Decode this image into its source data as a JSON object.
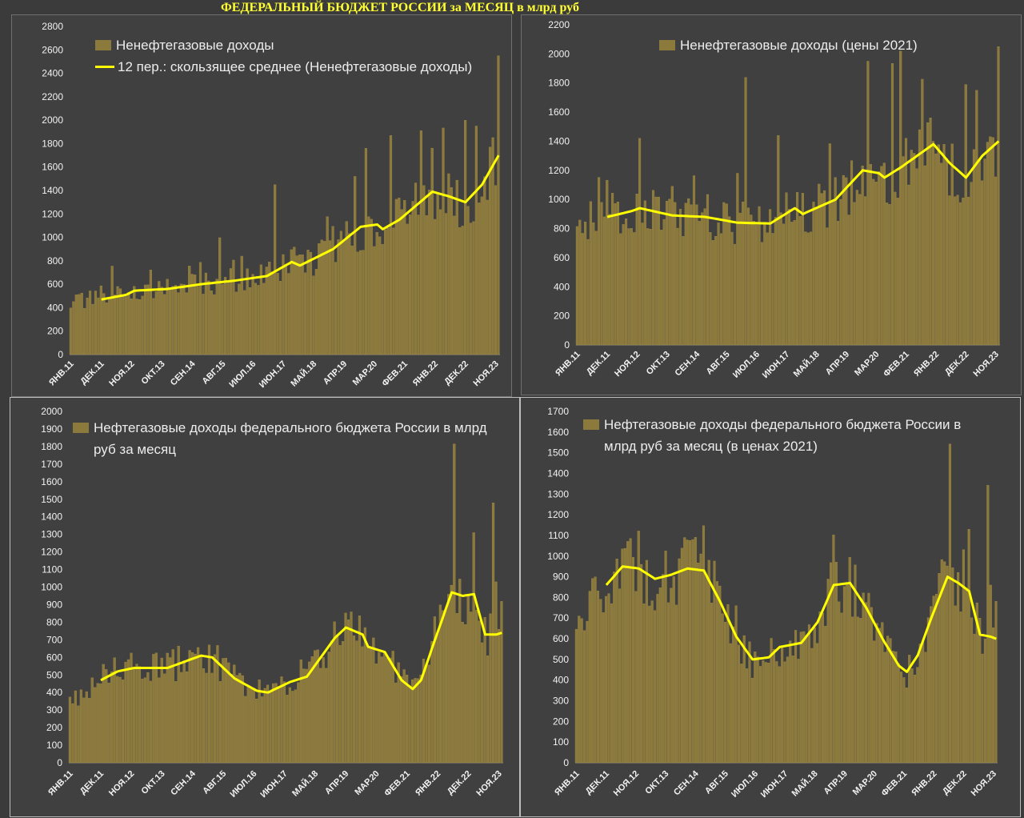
{
  "title": "ФЕДЕРАЛЬНЫЙ БЮДЖЕТ РОССИИ за МЕСЯЦ в млрд руб",
  "colors": {
    "bar": "#8c7a3c",
    "bar_edge": "#a89048",
    "line": "#ffff00",
    "background": "#404040",
    "title": "#ffff33"
  },
  "chart_data": [
    {
      "id": "nonoil-nominal",
      "type": "bar",
      "legend": [
        "Ненефтегазовые доходы",
        "12 пер.: скользящее среднее (Ненефтегазовые доходы)"
      ],
      "ylim": [
        0,
        2800
      ],
      "yticks": [
        "0",
        "200",
        "400",
        "600",
        "800",
        "1000",
        "1200",
        "1400",
        "1600",
        "1800",
        "2000",
        "2200",
        "2400",
        "2600",
        "2800"
      ],
      "xticks": [
        "ЯНВ.11",
        "ДЕК.11",
        "НОЯ.12",
        "ОКТ.13",
        "СЕН.14",
        "АВГ.15",
        "ИЮЛ.16",
        "ИЮН.17",
        "МАЙ.18",
        "АПР.19",
        "МАР.20",
        "ФЕВ.21",
        "ЯНВ.22",
        "ДЕК.22",
        "НОЯ.23"
      ],
      "x_start": "2011-01",
      "x_end": "2023-12",
      "trend_anchors": [
        [
          0,
          450
        ],
        [
          11,
          470
        ],
        [
          23,
          545
        ],
        [
          35,
          560
        ],
        [
          47,
          600
        ],
        [
          59,
          630
        ],
        [
          71,
          670
        ],
        [
          80,
          790
        ],
        [
          83,
          760
        ],
        [
          95,
          900
        ],
        [
          107,
          1080
        ],
        [
          111,
          1110
        ],
        [
          113,
          1070
        ],
        [
          119,
          1150
        ],
        [
          131,
          1390
        ],
        [
          137,
          1350
        ],
        [
          143,
          1300
        ],
        [
          149,
          1450
        ],
        [
          155,
          1700
        ]
      ],
      "moving_average": [
        [
          11,
          470
        ],
        [
          20,
          510
        ],
        [
          23,
          545
        ],
        [
          35,
          560
        ],
        [
          47,
          600
        ],
        [
          59,
          630
        ],
        [
          71,
          670
        ],
        [
          80,
          790
        ],
        [
          83,
          760
        ],
        [
          95,
          900
        ],
        [
          105,
          1090
        ],
        [
          111,
          1110
        ],
        [
          113,
          1070
        ],
        [
          119,
          1150
        ],
        [
          131,
          1390
        ],
        [
          137,
          1350
        ],
        [
          143,
          1300
        ],
        [
          149,
          1450
        ],
        [
          155,
          1700
        ]
      ],
      "spikes": {
        "15": 260,
        "29": 170,
        "43": 170,
        "54": 380,
        "62": 200,
        "74": 740,
        "93": 300,
        "103": 500,
        "107": 680,
        "116": 760,
        "127": 600,
        "135": 570,
        "143": 700,
        "147": 550,
        "155": 850
      }
    },
    {
      "id": "nonoil-real",
      "type": "bar",
      "legend": [
        "Ненефтегазовые доходы (цены 2021)"
      ],
      "ylim": [
        0,
        2200
      ],
      "yticks": [
        "0",
        "200",
        "400",
        "600",
        "800",
        "1000",
        "1200",
        "1400",
        "1600",
        "1800",
        "2000",
        "2200"
      ],
      "xticks": [
        "ЯНВ.11",
        "ДЕК.11",
        "НОЯ.12",
        "ОКТ.13",
        "СЕН.14",
        "АВГ.15",
        "ИЮЛ.16",
        "ИЮН.17",
        "МАЙ.18",
        "АПР.19",
        "МАР.20",
        "ФЕВ.21",
        "ЯНВ.22",
        "ДЕК.22",
        "НОЯ.23"
      ],
      "x_start": "2011-01",
      "x_end": "2023-12",
      "trend_anchors": [
        [
          0,
          850
        ],
        [
          11,
          880
        ],
        [
          20,
          920
        ],
        [
          23,
          940
        ],
        [
          35,
          890
        ],
        [
          47,
          880
        ],
        [
          59,
          840
        ],
        [
          71,
          835
        ],
        [
          80,
          940
        ],
        [
          83,
          900
        ],
        [
          95,
          1000
        ],
        [
          107,
          1200
        ],
        [
          111,
          1180
        ],
        [
          113,
          1150
        ],
        [
          119,
          1220
        ],
        [
          131,
          1380
        ],
        [
          137,
          1250
        ],
        [
          143,
          1150
        ],
        [
          149,
          1300
        ],
        [
          155,
          1400
        ]
      ],
      "moving_average": [
        [
          11,
          880
        ],
        [
          20,
          920
        ],
        [
          23,
          940
        ],
        [
          35,
          890
        ],
        [
          47,
          880
        ],
        [
          59,
          840
        ],
        [
          71,
          835
        ],
        [
          80,
          940
        ],
        [
          83,
          900
        ],
        [
          95,
          1000
        ],
        [
          105,
          1200
        ],
        [
          111,
          1180
        ],
        [
          113,
          1150
        ],
        [
          119,
          1220
        ],
        [
          131,
          1380
        ],
        [
          137,
          1250
        ],
        [
          143,
          1150
        ],
        [
          149,
          1300
        ],
        [
          155,
          1400
        ]
      ],
      "spikes": {
        "8": 280,
        "23": 480,
        "43": 280,
        "59": 340,
        "62": 1000,
        "74": 570,
        "93": 400,
        "107": 750,
        "116": 750,
        "119": 800,
        "127": 500,
        "143": 640,
        "147": 500,
        "155": 650
      }
    },
    {
      "id": "oil-nominal",
      "type": "bar",
      "legend": [
        "Нефтегазовые доходы федерального бюджета России в млрд руб за месяц"
      ],
      "ylim": [
        0,
        2000
      ],
      "yticks": [
        "0",
        "100",
        "200",
        "300",
        "400",
        "500",
        "600",
        "700",
        "800",
        "900",
        "1000",
        "1100",
        "1200",
        "1300",
        "1400",
        "1500",
        "1600",
        "1700",
        "1800",
        "1900",
        "2000"
      ],
      "xticks": [
        "ЯНВ.11",
        "ДЕК.11",
        "НОЯ.12",
        "ОКТ.13",
        "СЕН.14",
        "АВГ.15",
        "ИЮЛ.16",
        "ИЮН.17",
        "МАЙ.18",
        "АПР.19",
        "МАР.20",
        "ФЕВ.21",
        "ЯНВ.22",
        "ДЕК.22",
        "НОЯ.23"
      ],
      "x_start": "2011-01",
      "x_end": "2023-12",
      "trend_anchors": [
        [
          0,
          350
        ],
        [
          11,
          470
        ],
        [
          17,
          520
        ],
        [
          23,
          540
        ],
        [
          35,
          540
        ],
        [
          47,
          610
        ],
        [
          51,
          600
        ],
        [
          59,
          480
        ],
        [
          67,
          410
        ],
        [
          71,
          400
        ],
        [
          79,
          460
        ],
        [
          85,
          490
        ],
        [
          95,
          710
        ],
        [
          99,
          770
        ],
        [
          105,
          730
        ],
        [
          107,
          660
        ],
        [
          113,
          630
        ],
        [
          119,
          470
        ],
        [
          123,
          420
        ],
        [
          126,
          470
        ],
        [
          131,
          700
        ],
        [
          137,
          970
        ],
        [
          141,
          950
        ],
        [
          145,
          960
        ],
        [
          149,
          730
        ],
        [
          153,
          730
        ],
        [
          155,
          740
        ]
      ],
      "moving_average": [
        [
          11,
          470
        ],
        [
          17,
          520
        ],
        [
          23,
          540
        ],
        [
          35,
          540
        ],
        [
          47,
          610
        ],
        [
          51,
          600
        ],
        [
          59,
          480
        ],
        [
          67,
          410
        ],
        [
          71,
          400
        ],
        [
          79,
          460
        ],
        [
          85,
          490
        ],
        [
          95,
          710
        ],
        [
          99,
          770
        ],
        [
          105,
          730
        ],
        [
          107,
          660
        ],
        [
          113,
          630
        ],
        [
          119,
          470
        ],
        [
          123,
          420
        ],
        [
          126,
          470
        ],
        [
          131,
          700
        ],
        [
          137,
          970
        ],
        [
          141,
          950
        ],
        [
          145,
          960
        ],
        [
          149,
          730
        ],
        [
          153,
          730
        ],
        [
          155,
          740
        ]
      ],
      "spikes": {
        "138": 850,
        "145": 350,
        "152": 750,
        "153": 300
      }
    },
    {
      "id": "oil-real",
      "type": "bar",
      "legend": [
        "Нефтегазовые доходы федерального бюджета России в млрд руб за месяц (в ценах 2021)"
      ],
      "ylim": [
        0,
        1700
      ],
      "yticks": [
        "0",
        "100",
        "200",
        "300",
        "400",
        "500",
        "600",
        "700",
        "800",
        "900",
        "1000",
        "1100",
        "1200",
        "1300",
        "1400",
        "1500",
        "1600",
        "1700"
      ],
      "xticks": [
        "ЯНВ.11",
        "ДЕК.11",
        "НОЯ.12",
        "ОКТ.13",
        "СЕН.14",
        "АВГ.15",
        "ИЮЛ.16",
        "ИЮН.17",
        "МАЙ.18",
        "АПР.19",
        "МАР.20",
        "ФЕВ.21",
        "ЯНВ.22",
        "ДЕК.22",
        "НОЯ.23"
      ],
      "x_start": "2011-01",
      "x_end": "2023-12",
      "trend_anchors": [
        [
          0,
          640
        ],
        [
          11,
          860
        ],
        [
          17,
          950
        ],
        [
          23,
          940
        ],
        [
          29,
          890
        ],
        [
          35,
          910
        ],
        [
          41,
          940
        ],
        [
          47,
          930
        ],
        [
          53,
          780
        ],
        [
          59,
          610
        ],
        [
          65,
          500
        ],
        [
          71,
          510
        ],
        [
          75,
          560
        ],
        [
          83,
          580
        ],
        [
          89,
          680
        ],
        [
          95,
          860
        ],
        [
          101,
          870
        ],
        [
          107,
          750
        ],
        [
          113,
          600
        ],
        [
          119,
          470
        ],
        [
          122,
          440
        ],
        [
          126,
          520
        ],
        [
          131,
          700
        ],
        [
          137,
          900
        ],
        [
          141,
          870
        ],
        [
          145,
          830
        ],
        [
          149,
          620
        ],
        [
          153,
          610
        ],
        [
          155,
          600
        ]
      ],
      "moving_average": [
        [
          11,
          860
        ],
        [
          17,
          950
        ],
        [
          23,
          940
        ],
        [
          29,
          890
        ],
        [
          35,
          910
        ],
        [
          41,
          940
        ],
        [
          47,
          930
        ],
        [
          53,
          780
        ],
        [
          59,
          610
        ],
        [
          65,
          500
        ],
        [
          71,
          510
        ],
        [
          75,
          560
        ],
        [
          83,
          580
        ],
        [
          89,
          680
        ],
        [
          95,
          860
        ],
        [
          101,
          870
        ],
        [
          107,
          750
        ],
        [
          113,
          600
        ],
        [
          119,
          470
        ],
        [
          122,
          440
        ],
        [
          126,
          520
        ],
        [
          131,
          700
        ],
        [
          137,
          900
        ],
        [
          141,
          870
        ],
        [
          145,
          830
        ],
        [
          149,
          620
        ],
        [
          153,
          610
        ],
        [
          155,
          600
        ]
      ],
      "spikes": {
        "138": 650,
        "145": 300,
        "152": 730,
        "153": 250
      }
    }
  ]
}
